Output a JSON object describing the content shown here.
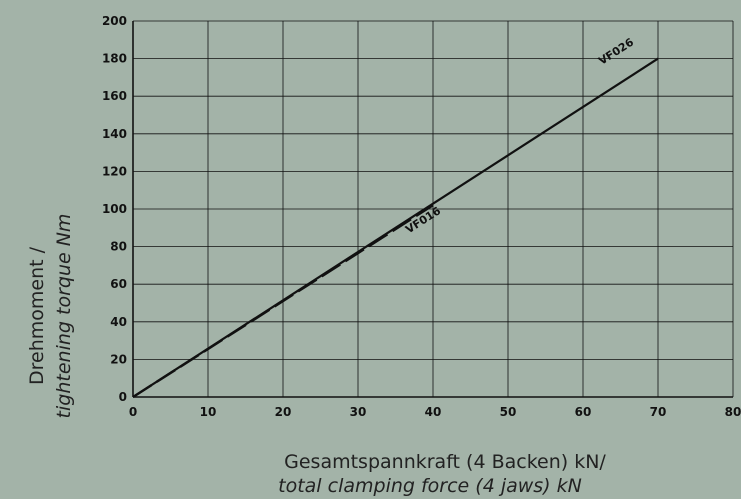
{
  "chart_data": {
    "type": "line",
    "xlabel": "Gesamtspannkraft (4 Backen) kN/",
    "xlabel_en": "total clamping force (4 jaws) kN",
    "ylabel": "Drehmoment /",
    "ylabel_en": "tightening torque Nm",
    "xlim": [
      0,
      80
    ],
    "ylim": [
      0,
      200
    ],
    "x_ticks": [
      0,
      10,
      20,
      30,
      40,
      50,
      60,
      70,
      80
    ],
    "y_ticks": [
      0,
      20,
      40,
      60,
      80,
      100,
      120,
      140,
      160,
      180,
      200
    ],
    "grid": true,
    "series": [
      {
        "name": "VF026",
        "style": "solid",
        "x": [
          0,
          70
        ],
        "y": [
          0,
          180
        ]
      },
      {
        "name": "VF016",
        "style": "dashed",
        "x": [
          0,
          40
        ],
        "y": [
          0,
          102
        ]
      }
    ]
  },
  "colors": {
    "background": "#a3b3a8",
    "grid": "#111111",
    "line": "#111111"
  }
}
